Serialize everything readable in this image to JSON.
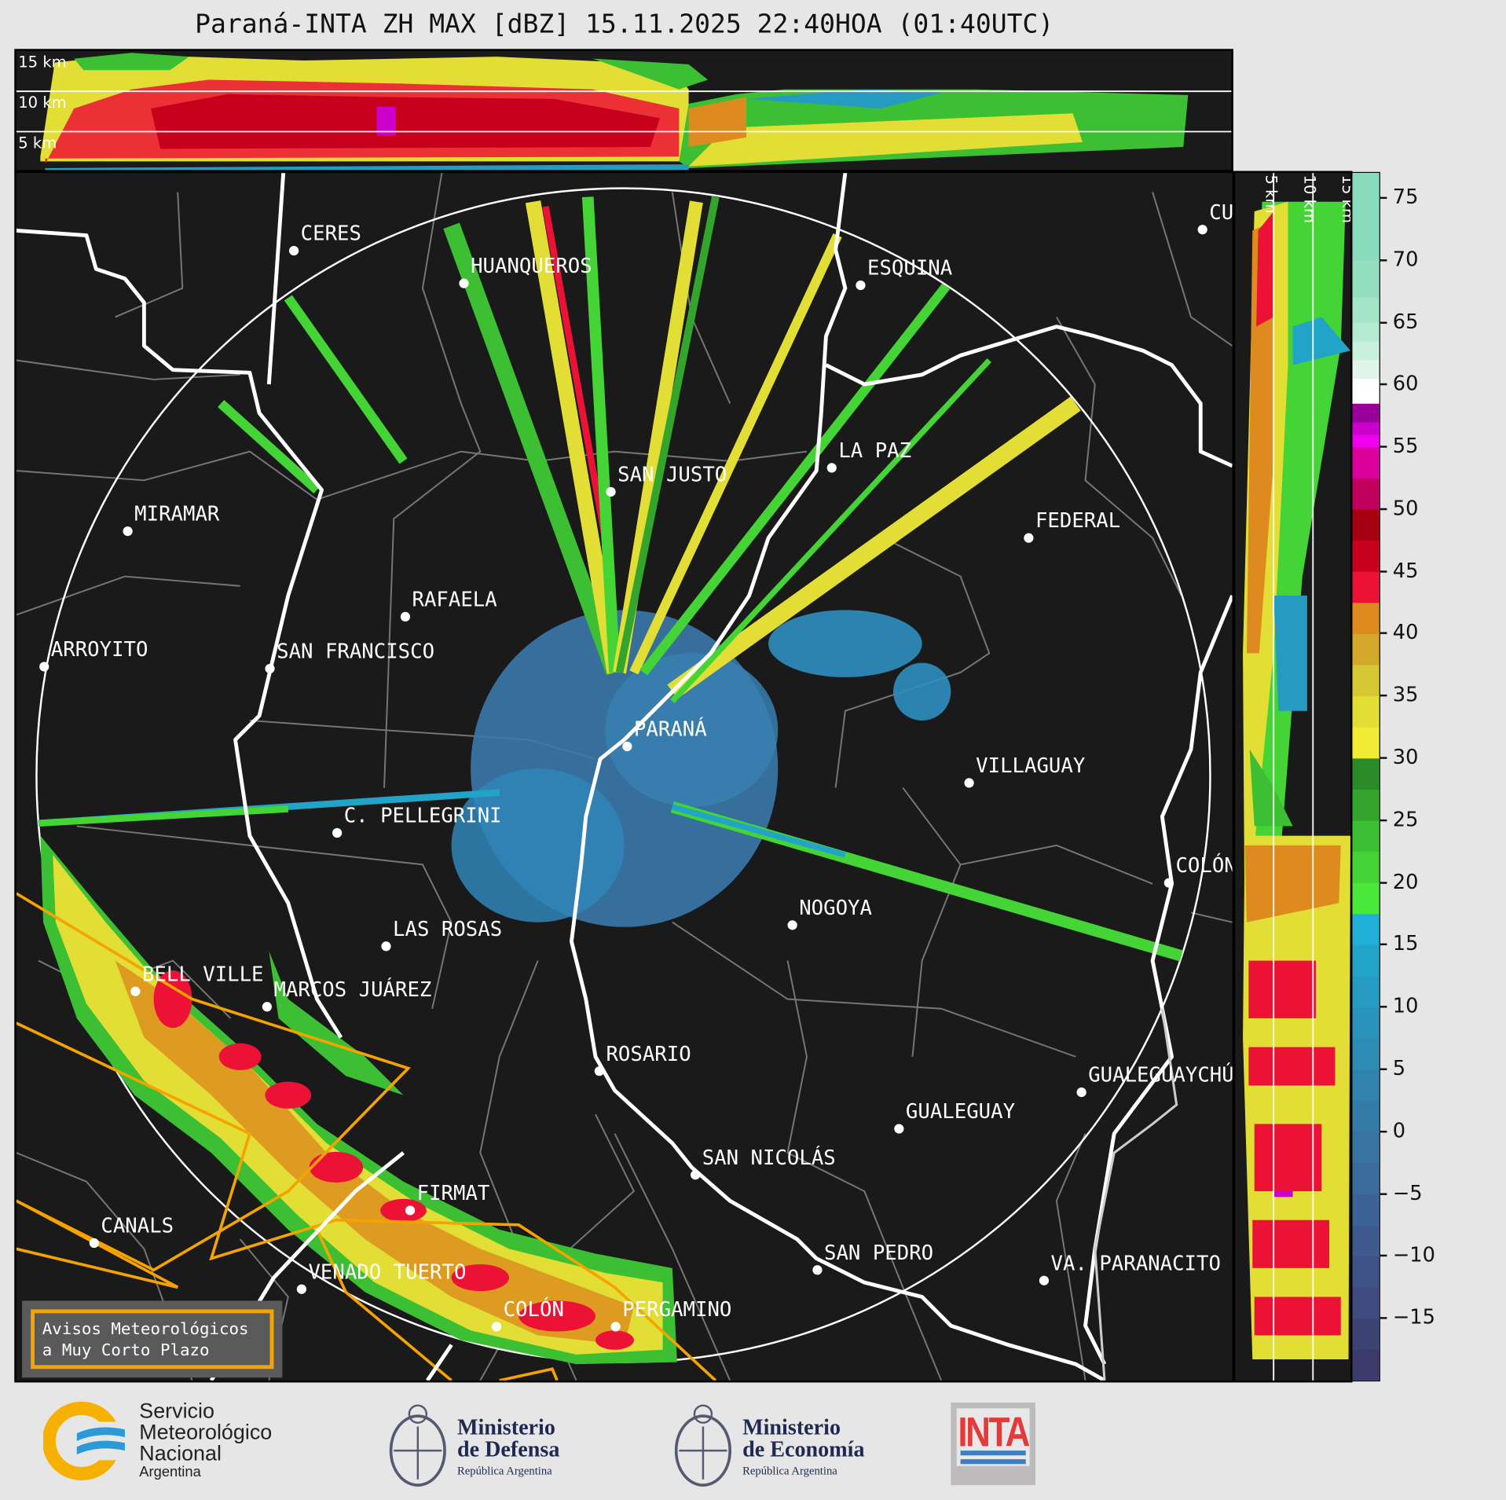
{
  "title": "Paraná-INTA ZH MAX [dBZ] 15.11.2025 22:40HOA (01:40UTC)",
  "top_panel": {
    "altitude_labels": [
      "15 km",
      "10 km",
      "5 km"
    ]
  },
  "right_panel": {
    "altitude_labels": [
      "5 km",
      "10 km",
      "15 km"
    ]
  },
  "colorbar": {
    "unit": "dBZ",
    "ticks": [
      "75",
      "70",
      "65",
      "60",
      "55",
      "50",
      "45",
      "40",
      "35",
      "30",
      "25",
      "20",
      "15",
      "10",
      "5",
      "0",
      "−5",
      "−10",
      "−15"
    ],
    "range": [
      -20,
      77
    ],
    "levels": [
      [
        -20,
        -17.5,
        "#3b3a6a"
      ],
      [
        -17.5,
        -15,
        "#3d4275"
      ],
      [
        -15,
        -12.5,
        "#3f4a7e"
      ],
      [
        -12.5,
        -10,
        "#3f5287"
      ],
      [
        -10,
        -7.5,
        "#3e5a8f"
      ],
      [
        -7.5,
        -5,
        "#3d6396"
      ],
      [
        -5,
        -2.5,
        "#3b6b9c"
      ],
      [
        -2.5,
        0,
        "#3873a2"
      ],
      [
        0,
        2.5,
        "#357ba8"
      ],
      [
        2.5,
        5,
        "#3183ae"
      ],
      [
        5,
        7.5,
        "#2d8bb4"
      ],
      [
        7.5,
        10,
        "#2993bb"
      ],
      [
        10,
        12.5,
        "#259bc1"
      ],
      [
        12.5,
        15,
        "#22a3c8"
      ],
      [
        15,
        17.5,
        "#20afd6"
      ],
      [
        17.5,
        20,
        "#4ae83a"
      ],
      [
        20,
        22.5,
        "#44d436"
      ],
      [
        22.5,
        25,
        "#3cbf32"
      ],
      [
        25,
        27.5,
        "#33a52c"
      ],
      [
        27.5,
        30,
        "#2a8a27"
      ],
      [
        30,
        32.5,
        "#f0ec35"
      ],
      [
        32.5,
        35,
        "#e2de35"
      ],
      [
        35,
        37.5,
        "#d5c834"
      ],
      [
        37.5,
        40,
        "#d4a82a"
      ],
      [
        40,
        42.5,
        "#dd8a1e"
      ],
      [
        42.5,
        45,
        "#ec1236"
      ],
      [
        45,
        47.5,
        "#c7001c"
      ],
      [
        47.5,
        50,
        "#a50010"
      ],
      [
        50,
        52.5,
        "#c1005e"
      ],
      [
        52.5,
        55,
        "#db009b"
      ],
      [
        55,
        56,
        "#ee00ee"
      ],
      [
        56,
        57,
        "#cc00cc"
      ],
      [
        57,
        58.5,
        "#990099"
      ],
      [
        58.5,
        60.5,
        "#ffffff"
      ],
      [
        60.5,
        62,
        "#e0f5ea"
      ],
      [
        62,
        63.5,
        "#c9f0dd"
      ],
      [
        63.5,
        65,
        "#b4ead0"
      ],
      [
        65,
        67,
        "#a4e5c8"
      ],
      [
        67,
        70,
        "#93dfc0"
      ],
      [
        70,
        77,
        "#88dcbd"
      ]
    ]
  },
  "cities": [
    "CERES",
    "HUANQUEROS",
    "ESQUINA",
    "CURUZÚ CUATIÁ",
    "SAN JUSTO",
    "LA PAZ",
    "MIRAMAR",
    "FEDERAL",
    "RAFAELA",
    "ARROYITO",
    "SAN FRANCISCO",
    "PARANÁ",
    "VILLAGUAY",
    "C. PELLEGRINI",
    "COLÓN",
    "NOGOYA",
    "LAS ROSAS",
    "BELL VILLE",
    "MARCOS JUÁREZ",
    "ROSARIO",
    "GUALEGUAYCHÚ",
    "GUALEGUAY",
    "SAN NICOLÁS",
    "FIRMAT",
    "CANALS",
    "SAN PEDRO",
    "VA. PARANACITO",
    "VENADO TUERTO",
    "COLÓN",
    "PERGAMINO"
  ],
  "warnings_box": {
    "line1": "Avisos Meteorológicos",
    "line2": "a Muy Corto Plazo",
    "border_color": "#f5a300"
  },
  "logos": {
    "smn": {
      "line1": "Servicio",
      "line2": "Meteorológico",
      "line3": "Nacional",
      "line4": "Argentina"
    },
    "defensa": {
      "line1": "Ministerio",
      "line2": "de Defensa",
      "line3": "República Argentina"
    },
    "economia": {
      "line1": "Ministerio",
      "line2": "de Economía",
      "line3": "República Argentina"
    },
    "inta": {
      "text": "INTA"
    }
  }
}
